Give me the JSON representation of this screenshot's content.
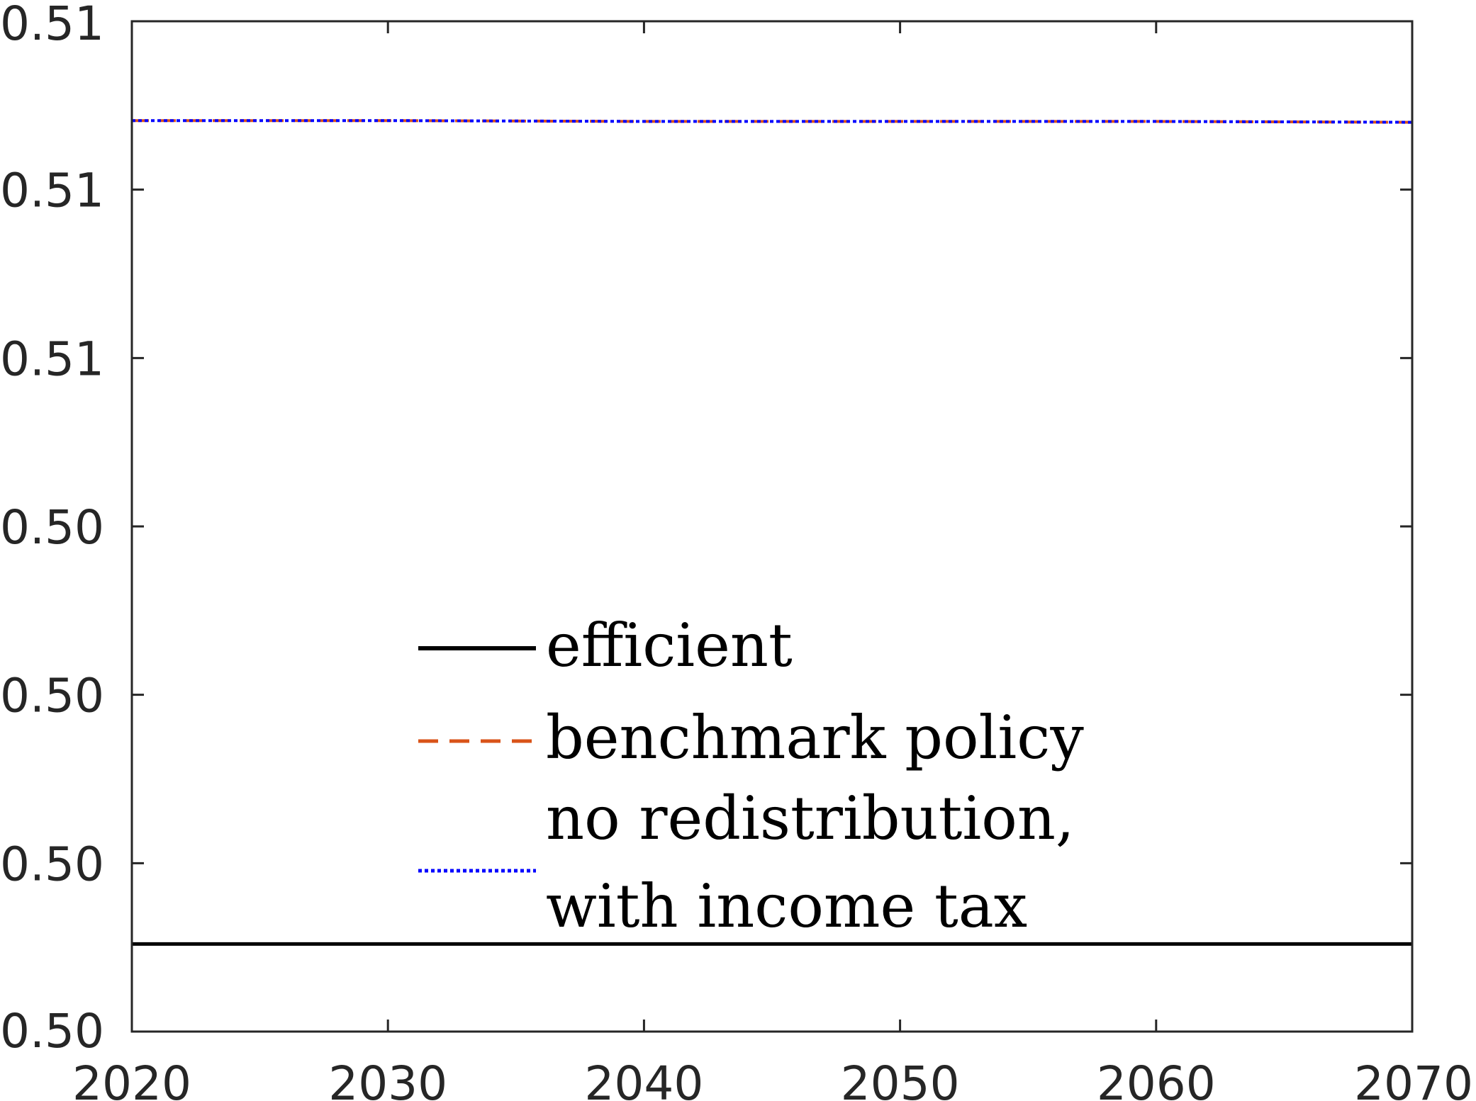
{
  "chart_data": {
    "type": "line",
    "title": "",
    "xlabel": "",
    "ylabel": "",
    "xlim": [
      2020,
      2070
    ],
    "ylim": [
      0.5,
      0.512
    ],
    "x_ticks": [
      2020,
      2030,
      2040,
      2050,
      2060,
      2070
    ],
    "x_tick_labels": [
      "2020",
      "2030",
      "2040",
      "2050",
      "2060",
      "2070"
    ],
    "y_ticks": [
      0.5,
      0.502,
      0.504,
      0.506,
      0.508,
      0.51,
      0.512
    ],
    "y_tick_labels": [
      "0.50",
      "0.50",
      "0.50",
      "0.50",
      "0.51",
      "0.51",
      "0.51"
    ],
    "grid": false,
    "legend_position": "bottom-center",
    "series": [
      {
        "name": "efficient",
        "color": "#000000",
        "style": "solid",
        "x": [
          2020,
          2030,
          2040,
          2050,
          2060,
          2070
        ],
        "y": [
          0.50104,
          0.50104,
          0.50104,
          0.50104,
          0.50104,
          0.50104
        ]
      },
      {
        "name": "benchmark policy",
        "color": "#D95319",
        "style": "dashed",
        "x": [
          2020,
          2030,
          2040,
          2050,
          2060,
          2070
        ],
        "y": [
          0.51082,
          0.51082,
          0.51081,
          0.51081,
          0.51081,
          0.5108
        ]
      },
      {
        "name": "no redistribution, with income tax",
        "name_lines": [
          "no redistribution,",
          "with income tax"
        ],
        "color": "#0000FF",
        "style": "dotted",
        "x": [
          2020,
          2030,
          2040,
          2050,
          2060,
          2070
        ],
        "y": [
          0.51082,
          0.51082,
          0.51081,
          0.51081,
          0.51081,
          0.5108
        ]
      }
    ]
  }
}
